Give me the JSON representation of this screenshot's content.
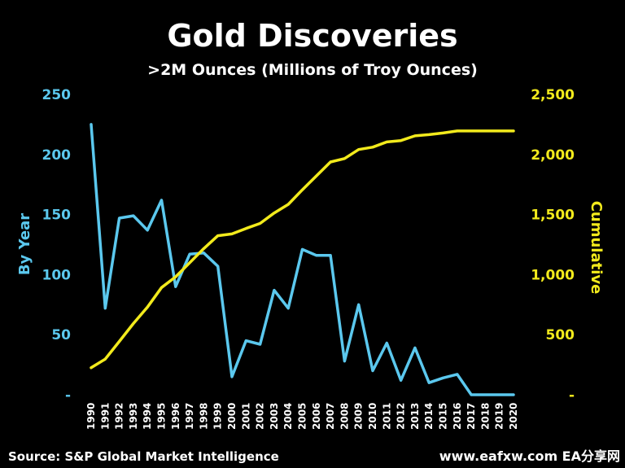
{
  "chart_data": {
    "type": "line",
    "title": "Gold Discoveries",
    "subtitle": ">2M Ounces (Millions of Troy Ounces)",
    "x": [
      "1990",
      "1991",
      "1992",
      "1993",
      "1994",
      "1995",
      "1996",
      "1997",
      "1998",
      "1999",
      "2000",
      "2001",
      "2002",
      "2003",
      "2004",
      "2005",
      "2006",
      "2007",
      "2008",
      "2009",
      "2010",
      "2011",
      "2012",
      "2013",
      "2014",
      "2015",
      "2016",
      "2017",
      "2018",
      "2019",
      "2020"
    ],
    "y_left_label": "By Year",
    "y_right_label": "Cumulative",
    "y_left_range": [
      0,
      250
    ],
    "y_right_range": [
      0,
      2500
    ],
    "y_left_ticks": [
      "-",
      "50",
      "100",
      "150",
      "200",
      "250"
    ],
    "y_left_tick_values": [
      0,
      50,
      100,
      150,
      200,
      250
    ],
    "y_right_ticks": [
      "-",
      "500",
      "1,000",
      "1,500",
      "2,000",
      "2,500"
    ],
    "y_right_tick_values": [
      0,
      500,
      1000,
      1500,
      2000,
      2500
    ],
    "series": [
      {
        "axis": "left",
        "color": "#5bc8ee",
        "values": [
          225,
          72,
          147,
          149,
          137,
          162,
          90,
          117,
          118,
          107,
          15,
          45,
          42,
          87,
          72,
          121,
          116,
          116,
          28,
          75,
          20,
          43,
          12,
          39,
          10,
          14,
          17,
          0,
          0,
          0,
          0
        ]
      },
      {
        "axis": "right",
        "color": "#f2ea1c",
        "values": [
          225,
          297,
          444,
          593,
          730,
          892,
          982,
          1099,
          1217,
          1324,
          1339,
          1384,
          1426,
          1513,
          1585,
          1706,
          1822,
          1938,
          1966,
          2041,
          2061,
          2104,
          2116,
          2155,
          2165,
          2179,
          2196,
          2196,
          2196,
          2196,
          2196
        ]
      }
    ],
    "grid": false,
    "source": "Source: S&P Global Market Intelligence",
    "watermark": "www.eafxw.com EA分享网"
  }
}
